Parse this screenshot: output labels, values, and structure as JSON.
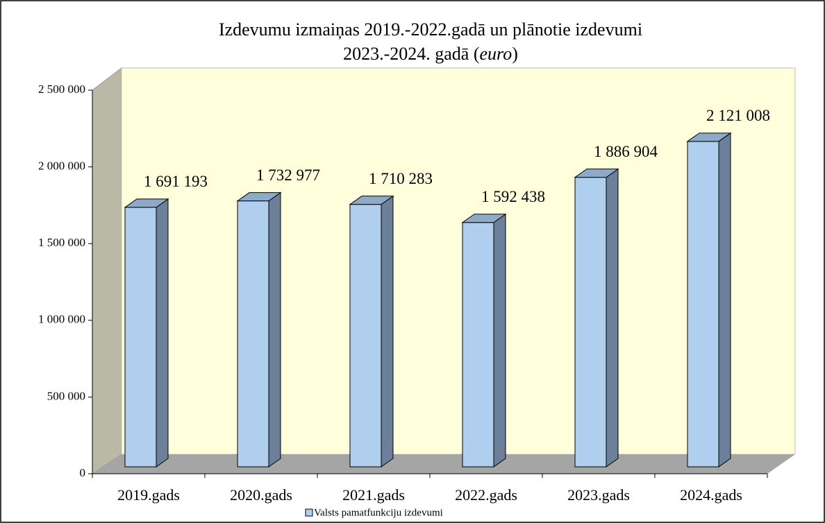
{
  "chart_data": {
    "type": "bar3d",
    "title": [
      "Izdevumu izmaiņas 2019.-2022.gadā  un plānotie izdevumi",
      "2023.-2024.  gadā (",
      "euro",
      ")"
    ],
    "categories": [
      "2019.gads",
      "2020.gads",
      "2021.gads",
      "2022.gads",
      "2023.gads",
      "2024.gads"
    ],
    "series": [
      {
        "name": "Valsts pamatfunkciju izdevumi",
        "color": "#b0cfee",
        "values": [
          1691193,
          1732977,
          1710283,
          1592438,
          1886904,
          2121008
        ],
        "value_labels": [
          "1 691 193",
          "1 732 977",
          "1 710 283",
          "1 592 438",
          "1 886 904",
          "2 121 008"
        ]
      }
    ],
    "ylim": [
      0,
      2500000
    ],
    "yticks": [
      0,
      {
        "value": 500000,
        "label": "500 000"
      },
      {
        "value": 1000000,
        "label": "1 000 000"
      },
      {
        "value": 1500000,
        "label": "1 500 000"
      },
      {
        "value": 2000000,
        "label": "2 000 000"
      },
      {
        "value": 2500000,
        "label": "2 500 000"
      }
    ],
    "legend": "bottom"
  }
}
